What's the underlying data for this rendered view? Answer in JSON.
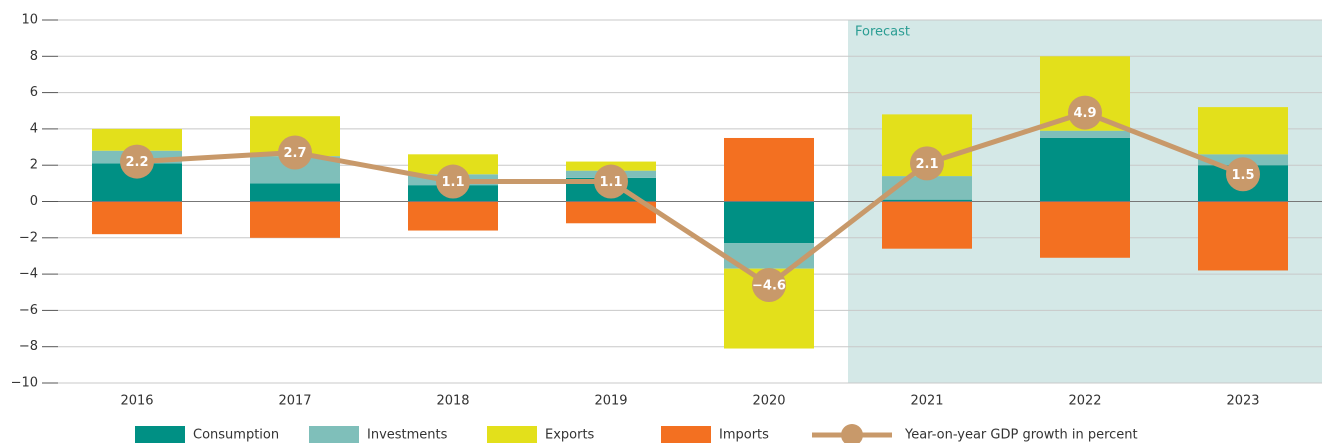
{
  "chart_data": {
    "type": "bar",
    "categories": [
      "2016",
      "2017",
      "2018",
      "2019",
      "2020",
      "2021",
      "2022",
      "2023"
    ],
    "series": [
      {
        "name": "Consumption",
        "color": "#009084",
        "values": [
          2.1,
          1.0,
          0.9,
          1.3,
          -2.3,
          0.1,
          3.5,
          2.0
        ]
      },
      {
        "name": "Investments",
        "color": "#7fbfba",
        "values": [
          0.7,
          1.5,
          0.6,
          0.4,
          -1.4,
          1.3,
          0.4,
          0.6
        ]
      },
      {
        "name": "Exports",
        "color": "#e3e01b",
        "values": [
          1.2,
          2.2,
          1.1,
          0.5,
          -4.4,
          3.4,
          4.1,
          2.6
        ]
      },
      {
        "name": "Imports",
        "color": "#f37021",
        "values": [
          -1.8,
          -2.0,
          -1.6,
          -1.2,
          3.5,
          -2.6,
          -3.1,
          -3.8
        ]
      }
    ],
    "line": {
      "name": "Year-on-year GDP growth in percent",
      "color": "#c8996a",
      "values": [
        2.2,
        2.7,
        1.1,
        1.1,
        -4.6,
        2.1,
        4.9,
        1.5
      ],
      "value_labels": [
        "2.2",
        "2.7",
        "1.1",
        "1.1",
        "−4.6",
        "2.1",
        "4.9",
        "1.5"
      ]
    },
    "forecast": {
      "label": "Forecast",
      "from": "2021",
      "color": "#d4e8e7"
    },
    "ylim": [
      -10,
      10
    ],
    "yticks": [
      {
        "value": -10,
        "label": "−10"
      },
      {
        "value": -8,
        "label": "−8"
      },
      {
        "value": -6,
        "label": "−6"
      },
      {
        "value": -4,
        "label": "−4"
      },
      {
        "value": -2,
        "label": "−2"
      },
      0,
      2,
      4,
      6,
      8,
      10
    ],
    "grid": true
  }
}
